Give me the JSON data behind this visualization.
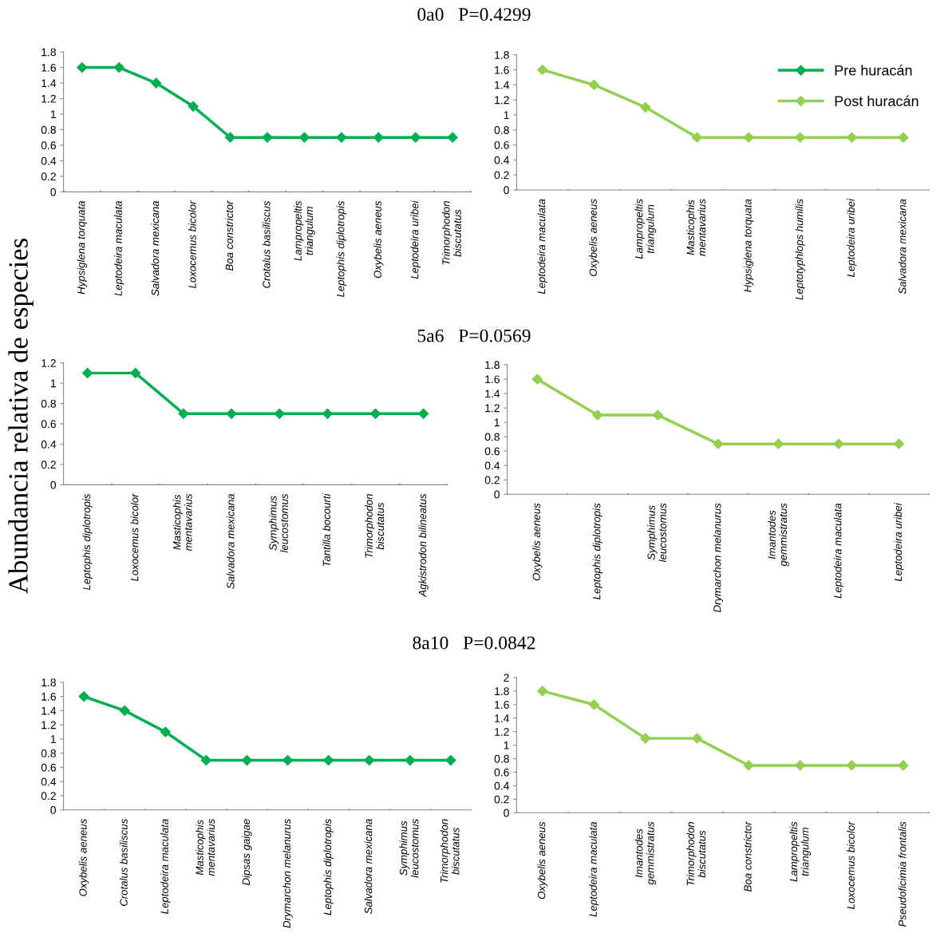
{
  "chart_data": [
    {
      "type": "line",
      "title": "0a0   P=0.4299",
      "categories": [
        "Hypsiglena torquata",
        "Leptodeira maculata",
        "Salvadora mexicana",
        "Loxocemus bicolor",
        "Boa constrictor",
        "Crotalus basiliscus",
        "Lampropeltis\ntriangulum",
        "Leptophis diplotropis",
        "Oxybelis aeneus",
        "Leptodeira uribei",
        "Trimorphodon\nbiscutatus"
      ],
      "series": [
        {
          "name": "Pre huracán",
          "color": "#00b050",
          "values": [
            1.6,
            1.6,
            1.4,
            1.1,
            0.7,
            0.7,
            0.7,
            0.7,
            0.7,
            0.7,
            0.7
          ]
        }
      ],
      "ylim": [
        0,
        1.8
      ],
      "yticks": [
        0,
        0.2,
        0.4,
        0.6,
        0.8,
        1,
        1.2,
        1.4,
        1.6,
        1.8
      ],
      "marker": "diamond",
      "line_style": "solid",
      "grid": false
    },
    {
      "type": "line",
      "categories": [
        "Leptodeira maculata",
        "Oxybelis aeneus",
        "Lampropeltis\ntriangulum",
        "Masticophis\nmentavarius",
        "Hypsiglena torquata",
        "Leptotyphlops humilis",
        "Leptodeira uribei",
        "Salvadora mexicana"
      ],
      "series": [
        {
          "name": "Post huracán",
          "color": "#92d050",
          "values": [
            1.6,
            1.4,
            1.1,
            0.7,
            0.7,
            0.7,
            0.7,
            0.7
          ]
        }
      ],
      "ylim": [
        0,
        1.8
      ],
      "yticks": [
        0,
        0.2,
        0.4,
        0.6,
        0.8,
        1,
        1.2,
        1.4,
        1.6,
        1.8
      ],
      "marker": "diamond",
      "line_style": "solid",
      "grid": false,
      "legend": "top right"
    },
    {
      "type": "line",
      "title": "5a6   P=0.0569",
      "ylabel": "Abundancia relativa de especies",
      "categories": [
        "Leptophis diplotropis",
        "Loxocemus bicolor",
        "Masticophis\nmentavarius",
        "Salvadora mexicana",
        "Symphimus\nleucostomus",
        "Tantilla bocourti",
        "Trimorphodon\nbiscutatus",
        "Agkistrodon bilineatus"
      ],
      "series": [
        {
          "color": "#00b050",
          "values": [
            1.1,
            1.1,
            0.7,
            0.7,
            0.7,
            0.7,
            0.7,
            0.7
          ]
        }
      ],
      "ylim": [
        0,
        1.2
      ],
      "yticks": [
        0,
        0.2,
        0.4,
        0.6,
        0.8,
        1,
        1.2
      ],
      "marker": "diamond",
      "line_style": "solid",
      "grid": false
    },
    {
      "type": "line",
      "categories": [
        "Oxybelis aeneus",
        "Leptophis diplotropis",
        "Symphimus\nleucostomus",
        "Drymarchon melanurus",
        "Imantodes\ngemmistratus",
        "Leptodeira maculata",
        "Leptodeira uribei"
      ],
      "series": [
        {
          "color": "#92d050",
          "values": [
            1.6,
            1.1,
            1.1,
            0.7,
            0.7,
            0.7,
            0.7
          ]
        }
      ],
      "ylim": [
        0,
        1.8
      ],
      "yticks": [
        0,
        0.2,
        0.4,
        0.6,
        0.8,
        1,
        1.2,
        1.4,
        1.6,
        1.8
      ],
      "marker": "diamond",
      "line_style": "solid",
      "grid": false
    },
    {
      "type": "line",
      "title": "8a10   P=0.0842",
      "categories": [
        "Oxybelis aeneus",
        "Crotalus basiliscus",
        "Leptodeira maculata",
        "Masticophis\nmentavarius",
        "Dipsas gaigae",
        "Drymarchon melanurus",
        "Leptophis diplotropis",
        "Salvadora mexicana",
        "Symphimus\nleucostomus",
        "Trimorphodon\nbiscutatus"
      ],
      "series": [
        {
          "color": "#00b050",
          "values": [
            1.6,
            1.4,
            1.1,
            0.7,
            0.7,
            0.7,
            0.7,
            0.7,
            0.7,
            0.7
          ]
        }
      ],
      "ylim": [
        0,
        1.8
      ],
      "yticks": [
        0,
        0.2,
        0.4,
        0.6,
        0.8,
        1,
        1.2,
        1.4,
        1.6,
        1.8
      ],
      "marker": "diamond",
      "line_style": "solid",
      "grid": false
    },
    {
      "type": "line",
      "categories": [
        "Oxybelis aeneus",
        "Leptodeira maculata",
        "Imantodes\ngemmistratus",
        "Trimorphodon\nbiscutatus",
        "Boa constrictor",
        "Lampropeltis\ntriangulum",
        "Loxocemus bicolor",
        "Pseudoficimia frontalis"
      ],
      "series": [
        {
          "color": "#92d050",
          "values": [
            1.8,
            1.6,
            1.1,
            1.1,
            0.7,
            0.7,
            0.7,
            0.7
          ]
        }
      ],
      "ylim": [
        0,
        2
      ],
      "yticks": [
        0,
        0.2,
        0.4,
        0.6,
        0.8,
        1,
        1.2,
        1.4,
        1.6,
        1.8,
        2
      ],
      "marker": "diamond",
      "line_style": "solid",
      "grid": false
    }
  ]
}
